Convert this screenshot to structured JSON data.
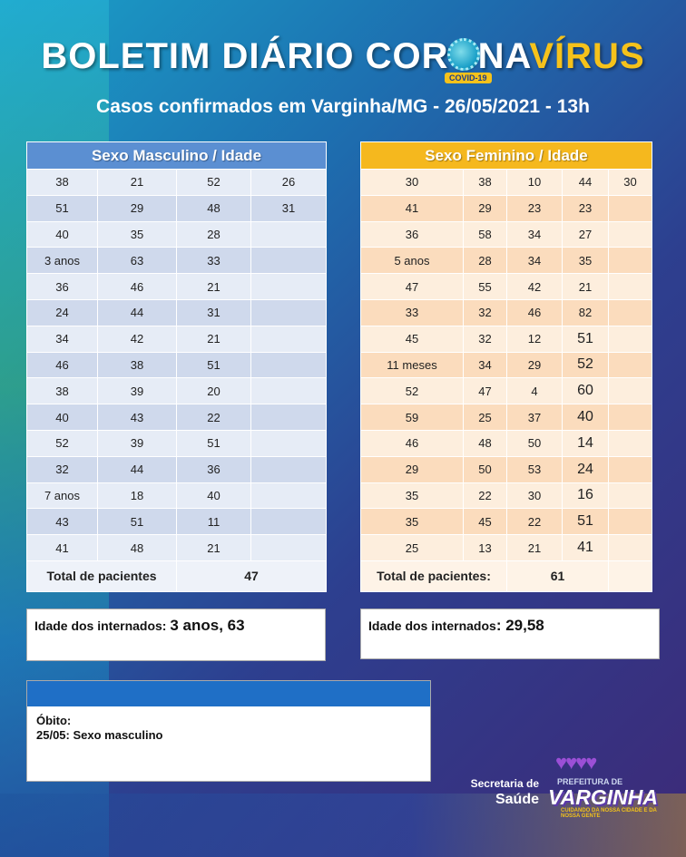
{
  "header": {
    "title_part1": "BOLETIM DIÁRIO CORONA",
    "title_part2": "VÍRUS",
    "covid_tag": "COVID-19",
    "subtitle": "Casos confirmados em Varginha/MG - 26/05/2021 - 13h"
  },
  "male_table": {
    "title": "Sexo Masculino / Idade",
    "rows": [
      [
        "38",
        "21",
        "52",
        "26"
      ],
      [
        "51",
        "29",
        "48",
        "31"
      ],
      [
        "40",
        "35",
        "28",
        ""
      ],
      [
        "3 anos",
        "63",
        "33",
        ""
      ],
      [
        "36",
        "46",
        "21",
        ""
      ],
      [
        "24",
        "44",
        "31",
        ""
      ],
      [
        "34",
        "42",
        "21",
        ""
      ],
      [
        "46",
        "38",
        "51",
        ""
      ],
      [
        "38",
        "39",
        "20",
        ""
      ],
      [
        "40",
        "43",
        "22",
        ""
      ],
      [
        "52",
        "39",
        "51",
        ""
      ],
      [
        "32",
        "44",
        "36",
        ""
      ],
      [
        "7 anos",
        "18",
        "40",
        ""
      ],
      [
        "43",
        "51",
        "11",
        ""
      ],
      [
        "41",
        "48",
        "21",
        ""
      ]
    ],
    "total_label": "Total de pacientes",
    "total_value": "47"
  },
  "female_table": {
    "title": "Sexo Feminino / Idade",
    "rows": [
      [
        "30",
        "38",
        "10",
        "44",
        "30"
      ],
      [
        "41",
        "29",
        "23",
        "23",
        ""
      ],
      [
        "36",
        "58",
        "34",
        "27",
        ""
      ],
      [
        "5 anos",
        "28",
        "34",
        "35",
        ""
      ],
      [
        "47",
        "55",
        "42",
        "21",
        ""
      ],
      [
        "33",
        "32",
        "46",
        "82",
        ""
      ],
      [
        "45",
        "32",
        "12",
        "51",
        ""
      ],
      [
        "11 meses",
        "34",
        "29",
        "52",
        ""
      ],
      [
        "52",
        "47",
        "4",
        "60",
        ""
      ],
      [
        "59",
        "25",
        "37",
        "40",
        ""
      ],
      [
        "46",
        "48",
        "50",
        "14",
        ""
      ],
      [
        "29",
        "50",
        "53",
        "24",
        ""
      ],
      [
        "35",
        "22",
        "30",
        "16",
        ""
      ],
      [
        "35",
        "45",
        "22",
        "51",
        ""
      ],
      [
        "25",
        "13",
        "21",
        "41",
        ""
      ]
    ],
    "total_label": "Total de pacientes:",
    "total_value": "61"
  },
  "internados_male": {
    "label": "Idade dos internados: ",
    "value": "3 anos, 63"
  },
  "internados_female": {
    "label": "Idade dos internados",
    "value": ": 29,58"
  },
  "obito": {
    "title": "Óbito:",
    "line": "25/05:  Sexo masculino"
  },
  "footer": {
    "secretaria": "Secretaria de",
    "saude": "Saúde",
    "prefeitura": "PREFEITURA DE",
    "city": "VARGINHA",
    "slogan": "CUIDANDO DA NOSSA CIDADE E DA NOSSA GENTE"
  },
  "colors": {
    "male_header": "#5b8fd2",
    "female_header": "#f5b81e",
    "total_red": "#a51818"
  }
}
